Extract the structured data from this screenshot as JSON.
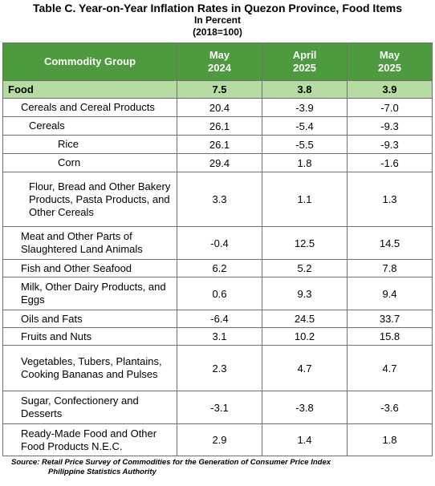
{
  "title": {
    "line1": "Table C. Year-on-Year Inflation Rates in Quezon Province, Food Items",
    "line2": "In Percent",
    "line3": "(2018=100)"
  },
  "headers": {
    "commodity": "Commodity Group",
    "col1": [
      "May",
      "2024"
    ],
    "col2": [
      "April",
      "2025"
    ],
    "col3": [
      "May",
      "2025"
    ]
  },
  "rows": [
    {
      "name": "Food",
      "level": 0,
      "values": [
        "7.5",
        "3.8",
        "3.9"
      ]
    },
    {
      "name": "Cereals and Cereal Products",
      "level": 1,
      "values": [
        "20.4",
        "-3.9",
        "-7.0"
      ]
    },
    {
      "name": "Cereals",
      "level": 2,
      "values": [
        "26.1",
        "-5.4",
        "-9.3"
      ]
    },
    {
      "name": "Rice",
      "level": 3,
      "values": [
        "26.1",
        "-5.5",
        "-9.3"
      ]
    },
    {
      "name": "Corn",
      "level": 3,
      "values": [
        "29.4",
        "1.8",
        "-1.6"
      ]
    },
    {
      "name": "Flour, Bread and Other Bakery Products, Pasta Products, and Other Cereals",
      "level": 2,
      "values": [
        "3.3",
        "1.1",
        "1.3"
      ]
    },
    {
      "name": "Meat and Other Parts of Slaughtered Land Animals",
      "level": 1,
      "values": [
        "-0.4",
        "12.5",
        "14.5"
      ]
    },
    {
      "name": "Fish and Other Seafood",
      "level": 1,
      "values": [
        "6.2",
        "5.2",
        "7.8"
      ]
    },
    {
      "name": "Milk, Other Dairy Products, and Eggs",
      "level": 1,
      "values": [
        "0.6",
        "9.3",
        "9.4"
      ]
    },
    {
      "name": "Oils and Fats",
      "level": 1,
      "values": [
        "-6.4",
        "24.5",
        "33.7"
      ]
    },
    {
      "name": "Fruits and Nuts",
      "level": 1,
      "values": [
        "3.1",
        "10.2",
        "15.8"
      ]
    },
    {
      "name": "Vegetables, Tubers, Plantains, Cooking Bananas and Pulses",
      "level": 1,
      "values": [
        "2.3",
        "4.7",
        "4.7"
      ]
    },
    {
      "name": "Sugar, Confectionery and Desserts",
      "level": 1,
      "values": [
        "-3.1",
        "-3.8",
        "-3.6"
      ]
    },
    {
      "name": "Ready-Made Food and Other Food Products N.E.C.",
      "level": 1,
      "values": [
        "2.9",
        "1.4",
        "1.8"
      ]
    }
  ],
  "source": {
    "line1": "Source: Retail Price Survey of Commodities for the Generation of Consumer Price Index",
    "line2": "Philippine Statistics Authority"
  },
  "colors": {
    "header_bg": "#4e9a3e",
    "food_row_bg": "#b6dca2",
    "border": "#6f6f6f"
  }
}
